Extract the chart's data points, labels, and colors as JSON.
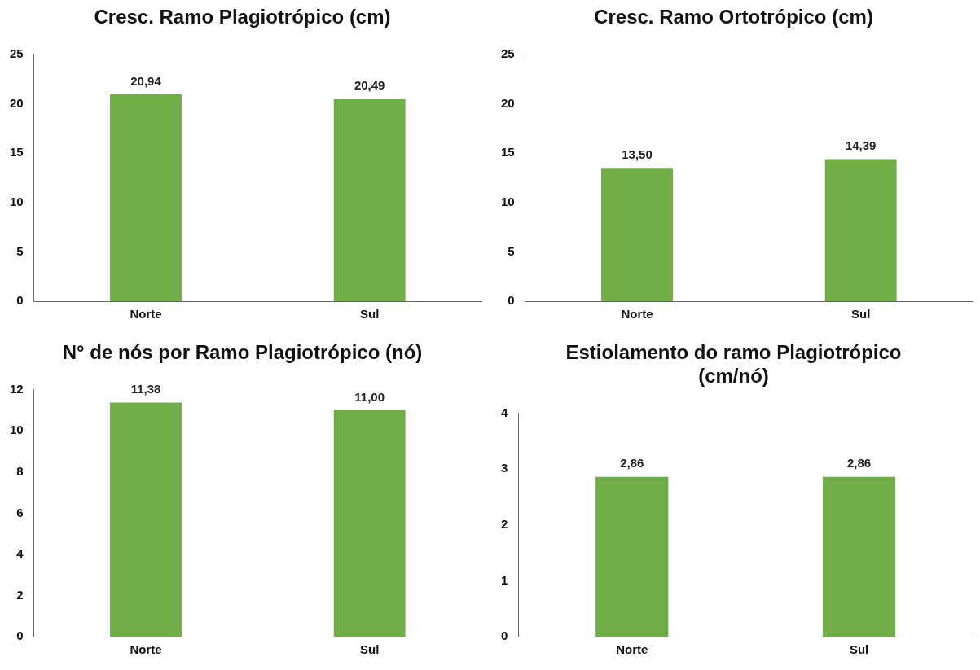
{
  "chart_data": [
    {
      "type": "bar",
      "title": "Cresc. Ramo Plagiotrópico (cm)",
      "categories": [
        "Norte",
        "Sul"
      ],
      "values": [
        20.94,
        20.49
      ],
      "value_labels": [
        "20,94",
        "20,49"
      ],
      "color": "#70ad47",
      "ylim": [
        0,
        25
      ],
      "yticks": [
        0,
        5,
        10,
        15,
        20,
        25
      ]
    },
    {
      "type": "bar",
      "title": "Cresc. Ramo Ortotrópico (cm)",
      "categories": [
        "Norte",
        "Sul"
      ],
      "values": [
        13.5,
        14.39
      ],
      "value_labels": [
        "13,50",
        "14,39"
      ],
      "color": "#70ad47",
      "ylim": [
        0,
        25
      ],
      "yticks": [
        0,
        5,
        10,
        15,
        20,
        25
      ]
    },
    {
      "type": "bar",
      "title": "N° de nós por Ramo Plagiotrópico (nó)",
      "categories": [
        "Norte",
        "Sul"
      ],
      "values": [
        11.38,
        11.0
      ],
      "value_labels": [
        "11,38",
        "11,00"
      ],
      "color": "#70ad47",
      "ylim": [
        0,
        12
      ],
      "yticks": [
        0,
        2,
        4,
        6,
        8,
        10,
        12
      ]
    },
    {
      "type": "bar",
      "title": "Estiolamento do ramo Plagiotrópico (cm/nó)",
      "categories": [
        "Norte",
        "Sul"
      ],
      "values": [
        2.86,
        2.86
      ],
      "value_labels": [
        "2,86",
        "2,86"
      ],
      "color": "#70ad47",
      "ylim": [
        0,
        4
      ],
      "yticks": [
        0,
        1,
        2,
        3,
        4
      ]
    }
  ]
}
